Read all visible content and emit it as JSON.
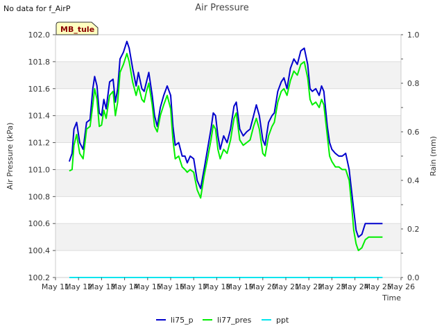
{
  "status_note": "No data for f_AirP",
  "chart_data": {
    "type": "line",
    "title": "Air Pressure",
    "xlabel": "Time",
    "ylabel": "Air Pressure (kPa)",
    "y2label": "Rain (mm)",
    "badge": "MB_tule",
    "ylim": [
      100.2,
      102.0
    ],
    "y2lim": [
      0.0,
      1.0
    ],
    "xlim": [
      0,
      15
    ],
    "x_ticks": [
      {
        "x": 0,
        "label": "May 11"
      },
      {
        "x": 1,
        "label": "May 12"
      },
      {
        "x": 2,
        "label": "May 13"
      },
      {
        "x": 3,
        "label": "May 14"
      },
      {
        "x": 4,
        "label": "May 15"
      },
      {
        "x": 5,
        "label": "May 16"
      },
      {
        "x": 6,
        "label": "May 17"
      },
      {
        "x": 7,
        "label": "May 18"
      },
      {
        "x": 8,
        "label": "May 19"
      },
      {
        "x": 9,
        "label": "May 20"
      },
      {
        "x": 10,
        "label": "May 21"
      },
      {
        "x": 11,
        "label": "May 22"
      },
      {
        "x": 12,
        "label": "May 23"
      },
      {
        "x": 13,
        "label": "May 24"
      },
      {
        "x": 14,
        "label": "May 25"
      },
      {
        "x": 15,
        "label": "May 26"
      }
    ],
    "y_ticks": [
      100.2,
      100.4,
      100.6,
      100.8,
      101.0,
      101.2,
      101.4,
      101.6,
      101.8,
      102.0
    ],
    "y_tick_labels": [
      "100.2",
      "100.4",
      "100.6",
      "100.8",
      "101.0",
      "101.2",
      "101.4",
      "101.6",
      "101.8",
      "102.0"
    ],
    "y2_ticks": [
      0.0,
      0.2,
      0.4,
      0.6,
      0.8,
      1.0
    ],
    "y2_tick_labels": [
      "0.0",
      "0.2",
      "0.4",
      "0.6",
      "0.8",
      "1.0"
    ],
    "grid": true,
    "legend_position": "bottom-center",
    "series": [
      {
        "name": "li75_p",
        "color": "#0000cc",
        "axis": "left",
        "x": [
          0.6,
          0.72,
          0.8,
          0.92,
          1.05,
          1.2,
          1.35,
          1.5,
          1.62,
          1.7,
          1.8,
          1.9,
          2.0,
          2.1,
          2.2,
          2.35,
          2.5,
          2.6,
          2.7,
          2.8,
          2.95,
          3.1,
          3.2,
          3.35,
          3.5,
          3.6,
          3.75,
          3.85,
          3.95,
          4.05,
          4.2,
          4.3,
          4.42,
          4.55,
          4.7,
          4.85,
          5.0,
          5.1,
          5.2,
          5.35,
          5.5,
          5.62,
          5.72,
          5.85,
          6.0,
          6.15,
          6.3,
          6.45,
          6.6,
          6.75,
          6.85,
          6.95,
          7.05,
          7.15,
          7.3,
          7.45,
          7.6,
          7.75,
          7.85,
          8.0,
          8.15,
          8.3,
          8.45,
          8.6,
          8.72,
          8.85,
          9.0,
          9.1,
          9.25,
          9.4,
          9.5,
          9.65,
          9.8,
          9.92,
          10.05,
          10.2,
          10.35,
          10.5,
          10.65,
          10.8,
          10.95,
          11.05,
          11.15,
          11.3,
          11.45,
          11.55,
          11.65,
          11.8,
          11.9,
          12.0,
          12.15,
          12.3,
          12.45,
          12.6,
          12.75,
          12.85,
          12.95,
          13.05,
          13.15,
          13.3,
          13.45,
          13.6,
          13.7,
          13.8,
          13.9,
          14.0,
          14.1,
          14.2
        ],
        "y": [
          101.06,
          101.12,
          101.3,
          101.35,
          101.2,
          101.15,
          101.35,
          101.37,
          101.6,
          101.69,
          101.62,
          101.42,
          101.4,
          101.52,
          101.45,
          101.65,
          101.67,
          101.5,
          101.6,
          101.82,
          101.87,
          101.95,
          101.9,
          101.75,
          101.62,
          101.72,
          101.6,
          101.58,
          101.65,
          101.72,
          101.55,
          101.4,
          101.32,
          101.46,
          101.55,
          101.62,
          101.55,
          101.32,
          101.18,
          101.2,
          101.1,
          101.1,
          101.05,
          101.1,
          101.08,
          100.92,
          100.86,
          101.0,
          101.15,
          101.3,
          101.42,
          101.4,
          101.25,
          101.15,
          101.25,
          101.2,
          101.3,
          101.47,
          101.5,
          101.3,
          101.25,
          101.28,
          101.3,
          101.4,
          101.48,
          101.4,
          101.22,
          101.18,
          101.35,
          101.4,
          101.42,
          101.58,
          101.65,
          101.68,
          101.6,
          101.75,
          101.82,
          101.78,
          101.88,
          101.9,
          101.78,
          101.6,
          101.58,
          101.6,
          101.55,
          101.62,
          101.58,
          101.32,
          101.2,
          101.15,
          101.12,
          101.1,
          101.1,
          101.12,
          101.0,
          100.85,
          100.7,
          100.55,
          100.5,
          100.52,
          100.6,
          100.6,
          100.6,
          100.6,
          100.6,
          100.6,
          100.6,
          100.6
        ]
      },
      {
        "name": "li77_pres",
        "color": "#00ee00",
        "axis": "left",
        "x": [
          0.6,
          0.72,
          0.8,
          0.92,
          1.05,
          1.2,
          1.35,
          1.5,
          1.62,
          1.7,
          1.8,
          1.9,
          2.0,
          2.1,
          2.2,
          2.35,
          2.5,
          2.6,
          2.7,
          2.8,
          2.95,
          3.1,
          3.2,
          3.35,
          3.5,
          3.6,
          3.75,
          3.85,
          3.95,
          4.05,
          4.2,
          4.3,
          4.42,
          4.55,
          4.7,
          4.85,
          5.0,
          5.1,
          5.2,
          5.35,
          5.5,
          5.62,
          5.72,
          5.85,
          6.0,
          6.15,
          6.3,
          6.45,
          6.6,
          6.75,
          6.85,
          6.95,
          7.05,
          7.15,
          7.3,
          7.45,
          7.6,
          7.75,
          7.85,
          8.0,
          8.15,
          8.3,
          8.45,
          8.6,
          8.72,
          8.85,
          9.0,
          9.1,
          9.25,
          9.4,
          9.5,
          9.65,
          9.8,
          9.92,
          10.05,
          10.2,
          10.35,
          10.5,
          10.65,
          10.8,
          10.95,
          11.05,
          11.15,
          11.3,
          11.45,
          11.55,
          11.65,
          11.8,
          11.9,
          12.0,
          12.15,
          12.3,
          12.45,
          12.6,
          12.75,
          12.85,
          12.95,
          13.05,
          13.15,
          13.3,
          13.45,
          13.6,
          13.7,
          13.8,
          13.9,
          14.0,
          14.1,
          14.2
        ],
        "y": [
          100.99,
          101.0,
          101.18,
          101.26,
          101.12,
          101.08,
          101.3,
          101.32,
          101.48,
          101.6,
          101.52,
          101.32,
          101.33,
          101.44,
          101.38,
          101.55,
          101.58,
          101.4,
          101.5,
          101.72,
          101.78,
          101.86,
          101.8,
          101.65,
          101.55,
          101.62,
          101.52,
          101.5,
          101.58,
          101.64,
          101.48,
          101.32,
          101.28,
          101.4,
          101.48,
          101.55,
          101.45,
          101.22,
          101.08,
          101.1,
          101.02,
          101.0,
          100.98,
          101.0,
          100.98,
          100.85,
          100.79,
          100.95,
          101.08,
          101.22,
          101.33,
          101.3,
          101.15,
          101.08,
          101.15,
          101.12,
          101.22,
          101.38,
          101.42,
          101.22,
          101.18,
          101.2,
          101.22,
          101.32,
          101.38,
          101.3,
          101.12,
          101.1,
          101.25,
          101.32,
          101.35,
          101.5,
          101.58,
          101.6,
          101.55,
          101.66,
          101.73,
          101.7,
          101.78,
          101.8,
          101.68,
          101.52,
          101.48,
          101.5,
          101.46,
          101.52,
          101.48,
          101.25,
          101.1,
          101.06,
          101.02,
          101.02,
          101.0,
          101.0,
          100.92,
          100.75,
          100.55,
          100.45,
          100.4,
          100.42,
          100.48,
          100.5,
          100.5,
          100.5,
          100.5,
          100.5,
          100.5,
          100.5
        ]
      },
      {
        "name": "ppt",
        "color": "#00e5ee",
        "axis": "right",
        "x": [
          0.6,
          14.2
        ],
        "y": [
          0.0,
          0.0
        ]
      }
    ]
  }
}
